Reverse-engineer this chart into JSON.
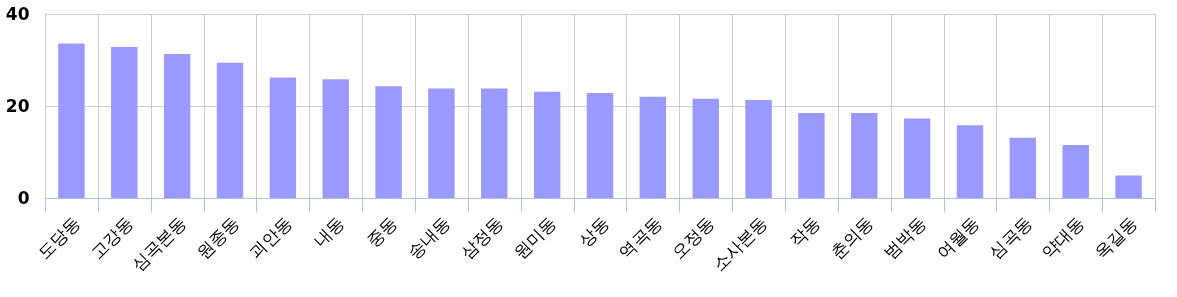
{
  "chart_data": {
    "type": "bar",
    "categories": [
      "도당동",
      "고강동",
      "심곡본동",
      "원종동",
      "괴안동",
      "내동",
      "중동",
      "송내동",
      "삼정동",
      "원미동",
      "상동",
      "역곡동",
      "오정동",
      "소사본동",
      "작동",
      "춘의동",
      "범박동",
      "여월동",
      "심곡동",
      "약대동",
      "옥길동"
    ],
    "values": [
      33.6,
      32.8,
      31.3,
      29.4,
      26.2,
      25.8,
      24.3,
      23.8,
      23.8,
      23.1,
      22.8,
      22.0,
      21.6,
      21.3,
      18.5,
      18.5,
      17.3,
      15.8,
      13.1,
      11.5,
      4.9
    ],
    "color": "#9999ff",
    "ylim": [
      0,
      40
    ],
    "yticks": [
      0,
      20,
      40
    ],
    "grid": true
  }
}
